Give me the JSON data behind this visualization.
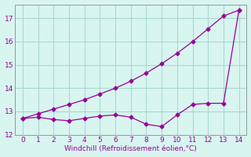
{
  "xlabel": "Windchill (Refroidissement éolien,°C)",
  "x_upper": [
    0,
    1,
    2,
    3,
    4,
    5,
    6,
    7,
    8,
    9,
    10,
    11,
    12,
    13,
    14
  ],
  "y_upper": [
    12.7,
    12.9,
    13.1,
    13.3,
    13.5,
    13.75,
    14.0,
    14.3,
    14.65,
    15.05,
    15.5,
    16.0,
    16.55,
    17.1,
    17.35
  ],
  "x_lower": [
    0,
    1,
    2,
    3,
    4,
    5,
    6,
    7,
    8,
    9,
    10,
    11,
    12,
    13,
    14
  ],
  "y_lower": [
    12.7,
    12.75,
    12.65,
    12.6,
    12.7,
    12.8,
    12.85,
    12.75,
    12.45,
    12.35,
    12.85,
    13.3,
    13.35,
    13.35,
    17.35
  ],
  "line_color": "#990099",
  "bg_color": "#d8f5f0",
  "grid_color": "#aad8d0",
  "xlim": [
    -0.5,
    14.5
  ],
  "ylim": [
    12,
    17.6
  ],
  "yticks": [
    12,
    13,
    14,
    15,
    16,
    17
  ],
  "xticks": [
    0,
    1,
    2,
    3,
    4,
    5,
    6,
    7,
    8,
    9,
    10,
    11,
    12,
    13,
    14
  ]
}
